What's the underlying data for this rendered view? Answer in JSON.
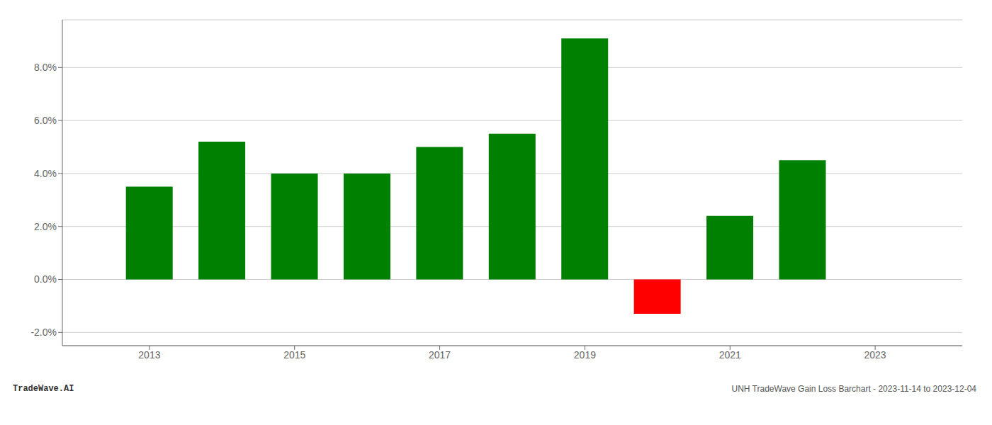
{
  "chart_data": {
    "type": "bar",
    "title": "UNH TradeWave Gain Loss Barchart - 2023-11-14 to 2023-12-04",
    "annotations": [
      "TradeWave.AI"
    ],
    "x": [
      2013,
      2014,
      2015,
      2016,
      2017,
      2018,
      2019,
      2020,
      2021,
      2022
    ],
    "values": [
      0.035,
      0.052,
      0.04,
      0.04,
      0.05,
      0.055,
      0.091,
      -0.013,
      0.024,
      0.045
    ],
    "colors": [
      "#008000",
      "#008000",
      "#008000",
      "#008000",
      "#008000",
      "#008000",
      "#008000",
      "#ff0000",
      "#008000",
      "#008000"
    ],
    "xlim": [
      2011.8,
      2024.2
    ],
    "xticks": [
      2013,
      2015,
      2017,
      2019,
      2021,
      2023
    ],
    "ylim": [
      -0.025,
      0.098
    ],
    "yticks": [
      {
        "value": -0.02,
        "label": "-2.0%"
      },
      {
        "value": 0,
        "label": "0.0%"
      },
      {
        "value": 0.02,
        "label": "2.0%"
      },
      {
        "value": 0.04,
        "label": "4.0%"
      },
      {
        "value": 0.06,
        "label": "6.0%"
      },
      {
        "value": 0.08,
        "label": "8.0%"
      }
    ],
    "grid": true
  }
}
